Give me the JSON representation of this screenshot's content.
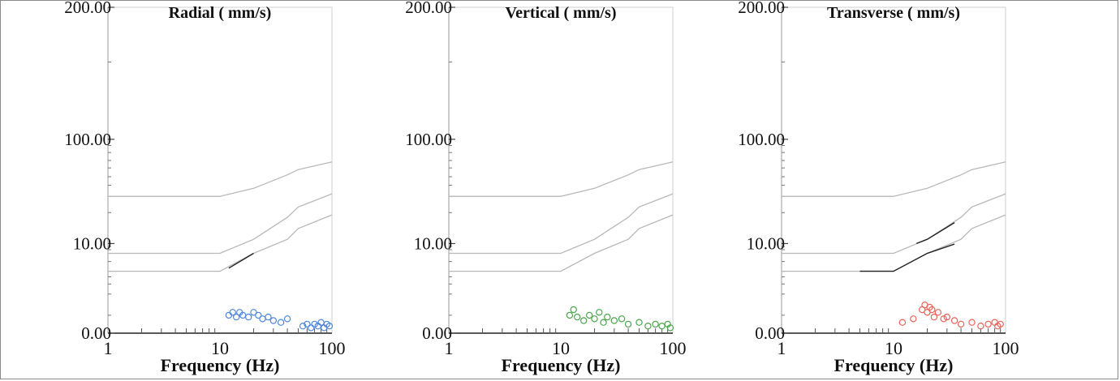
{
  "chart_data": [
    {
      "type": "scatter",
      "title": "Radial ( mm/s)",
      "xlabel": "Frequency (Hz)",
      "ylabel": "",
      "x_scale": "log",
      "xlim": [
        1,
        100
      ],
      "x_ticks": [
        "1",
        "10",
        "100"
      ],
      "y_ticks": [
        "0.00",
        "10.00",
        "100.00",
        "200.00"
      ],
      "y_tick_values": [
        0,
        10,
        100,
        200
      ],
      "grid": false,
      "marker_color": "#4f86d9",
      "limit_lines": [
        {
          "points": [
            [
              1,
              30
            ],
            [
              10,
              30
            ],
            [
              20,
              37
            ],
            [
              40,
              52
            ],
            [
              50,
              58
            ],
            [
              100,
              68
            ]
          ]
        },
        {
          "points": [
            [
              1,
              7
            ],
            [
              10,
              7
            ],
            [
              20,
              11
            ],
            [
              40,
              18
            ],
            [
              50,
              23
            ],
            [
              100,
              32
            ]
          ]
        },
        {
          "points": [
            [
              1,
              5
            ],
            [
              10,
              5
            ],
            [
              20,
              7
            ],
            [
              40,
              11
            ],
            [
              50,
              14
            ],
            [
              100,
              19
            ]
          ]
        }
      ],
      "highlight_segments": [
        {
          "points": [
            [
              12,
              5.3
            ],
            [
              20,
              7
            ]
          ]
        }
      ],
      "points": [
        [
          12,
          1.0
        ],
        [
          13,
          1.1
        ],
        [
          14,
          0.9
        ],
        [
          15,
          1.1
        ],
        [
          16,
          1.0
        ],
        [
          18,
          0.9
        ],
        [
          20,
          1.1
        ],
        [
          22,
          1.0
        ],
        [
          24,
          0.8
        ],
        [
          27,
          0.9
        ],
        [
          30,
          0.7
        ],
        [
          35,
          0.6
        ],
        [
          40,
          0.8
        ],
        [
          55,
          0.4
        ],
        [
          60,
          0.5
        ],
        [
          65,
          0.3
        ],
        [
          70,
          0.5
        ],
        [
          75,
          0.4
        ],
        [
          80,
          0.6
        ],
        [
          85,
          0.3
        ],
        [
          90,
          0.5
        ],
        [
          95,
          0.4
        ]
      ]
    },
    {
      "type": "scatter",
      "title": "Vertical ( mm/s)",
      "xlabel": "Frequency (Hz)",
      "ylabel": "",
      "x_scale": "log",
      "xlim": [
        1,
        100
      ],
      "x_ticks": [
        "1",
        "10",
        "100"
      ],
      "y_ticks": [
        "0.00",
        "10.00",
        "100.00",
        "200.00"
      ],
      "y_tick_values": [
        0,
        10,
        100,
        200
      ],
      "grid": false,
      "marker_color": "#4aa64a",
      "limit_lines": [
        {
          "points": [
            [
              1,
              30
            ],
            [
              10,
              30
            ],
            [
              20,
              37
            ],
            [
              40,
              52
            ],
            [
              50,
              58
            ],
            [
              100,
              68
            ]
          ]
        },
        {
          "points": [
            [
              1,
              7
            ],
            [
              10,
              7
            ],
            [
              20,
              11
            ],
            [
              40,
              18
            ],
            [
              50,
              23
            ],
            [
              100,
              32
            ]
          ]
        },
        {
          "points": [
            [
              1,
              5
            ],
            [
              10,
              5
            ],
            [
              20,
              7
            ],
            [
              40,
              11
            ],
            [
              50,
              14
            ],
            [
              100,
              19
            ]
          ]
        }
      ],
      "highlight_segments": [],
      "points": [
        [
          12,
          1.0
        ],
        [
          13,
          1.2
        ],
        [
          14,
          0.9
        ],
        [
          16,
          0.7
        ],
        [
          18,
          1.0
        ],
        [
          20,
          0.8
        ],
        [
          22,
          1.1
        ],
        [
          24,
          0.6
        ],
        [
          26,
          0.9
        ],
        [
          30,
          0.7
        ],
        [
          35,
          0.8
        ],
        [
          40,
          0.5
        ],
        [
          50,
          0.6
        ],
        [
          60,
          0.4
        ],
        [
          70,
          0.5
        ],
        [
          80,
          0.4
        ],
        [
          90,
          0.5
        ],
        [
          95,
          0.3
        ]
      ]
    },
    {
      "type": "scatter",
      "title": "Transverse ( mm/s)",
      "xlabel": "Frequency (Hz)",
      "ylabel": "",
      "x_scale": "log",
      "xlim": [
        1,
        100
      ],
      "x_ticks": [
        "1",
        "10",
        "100"
      ],
      "y_ticks": [
        "0.00",
        "10.00",
        "100.00",
        "200.00"
      ],
      "y_tick_values": [
        0,
        10,
        100,
        200
      ],
      "grid": false,
      "marker_color": "#e8645a",
      "limit_lines": [
        {
          "points": [
            [
              1,
              30
            ],
            [
              10,
              30
            ],
            [
              20,
              37
            ],
            [
              40,
              52
            ],
            [
              50,
              58
            ],
            [
              100,
              68
            ]
          ]
        },
        {
          "points": [
            [
              1,
              7
            ],
            [
              10,
              7
            ],
            [
              20,
              11
            ],
            [
              40,
              18
            ],
            [
              50,
              23
            ],
            [
              100,
              32
            ]
          ]
        },
        {
          "points": [
            [
              1,
              5
            ],
            [
              10,
              5
            ],
            [
              20,
              7
            ],
            [
              40,
              11
            ],
            [
              50,
              14
            ],
            [
              100,
              19
            ]
          ]
        }
      ],
      "highlight_segments": [
        {
          "points": [
            [
              16,
              10
            ],
            [
              20,
              11
            ],
            [
              35,
              16
            ]
          ]
        },
        {
          "points": [
            [
              5,
              5
            ],
            [
              10,
              5
            ],
            [
              20,
              7
            ],
            [
              35,
              9.8
            ]
          ]
        }
      ],
      "points": [
        [
          12,
          0.6
        ],
        [
          15,
          0.8
        ],
        [
          18,
          1.2
        ],
        [
          19,
          1.4
        ],
        [
          20,
          1.1
        ],
        [
          21,
          1.3
        ],
        [
          22,
          1.2
        ],
        [
          23,
          0.9
        ],
        [
          25,
          1.1
        ],
        [
          28,
          0.8
        ],
        [
          30,
          0.9
        ],
        [
          35,
          0.7
        ],
        [
          40,
          0.5
        ],
        [
          50,
          0.6
        ],
        [
          60,
          0.4
        ],
        [
          70,
          0.5
        ],
        [
          80,
          0.6
        ],
        [
          85,
          0.4
        ],
        [
          90,
          0.5
        ]
      ]
    }
  ]
}
